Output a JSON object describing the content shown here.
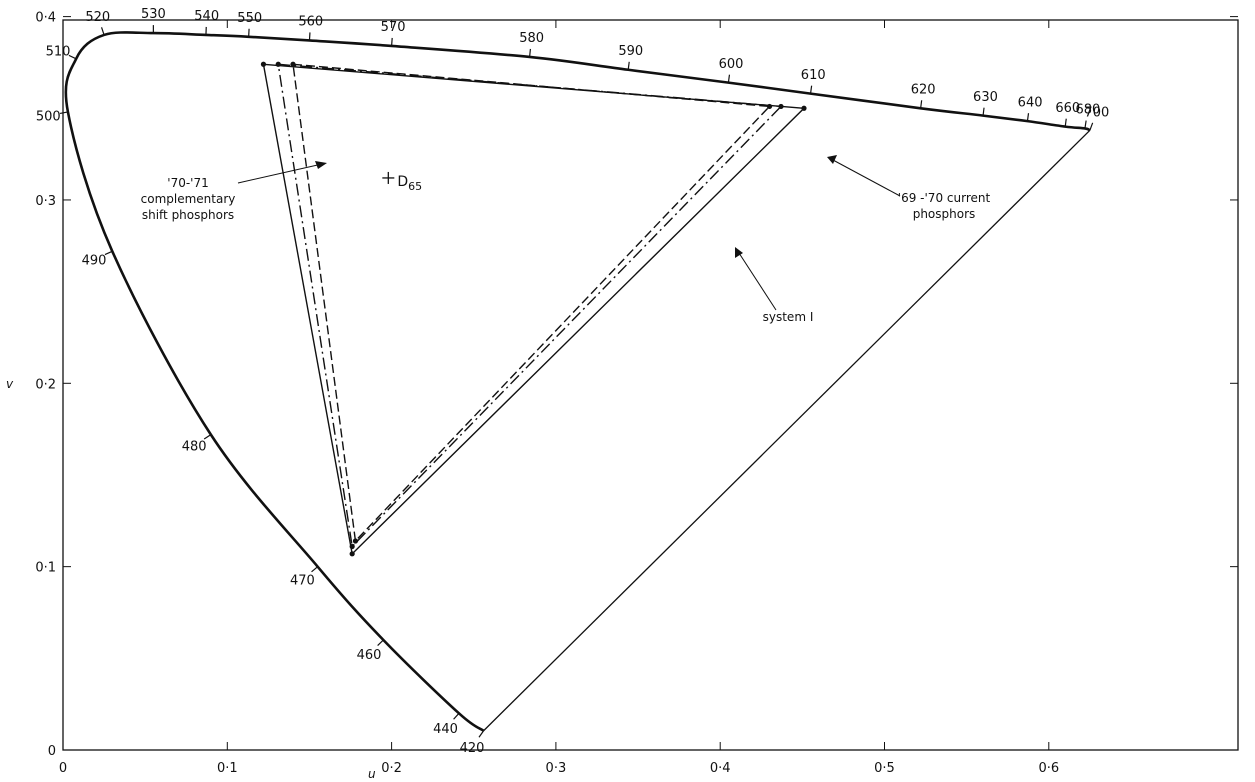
{
  "chart_data": {
    "type": "line",
    "title": "",
    "xlabel": "u",
    "ylabel": "v",
    "xlim": [
      0,
      0.65
    ],
    "ylim": [
      0,
      0.4
    ],
    "x_ticks": [
      {
        "value": 0,
        "label": "0"
      },
      {
        "value": 0.1,
        "label": "0·1"
      },
      {
        "value": 0.2,
        "label": "0·2"
      },
      {
        "value": 0.3,
        "label": "0·3"
      },
      {
        "value": 0.4,
        "label": "0·4"
      },
      {
        "value": 0.5,
        "label": "0·5"
      },
      {
        "value": 0.6,
        "label": "0·6"
      }
    ],
    "y_ticks": [
      {
        "value": 0,
        "label": "0"
      },
      {
        "value": 0.1,
        "label": "0·1"
      },
      {
        "value": 0.2,
        "label": "0·2"
      },
      {
        "value": 0.3,
        "label": "0·3"
      },
      {
        "value": 0.4,
        "label": "0·4"
      }
    ],
    "spectrum_locus": [
      {
        "wl": "420",
        "u": 0.256,
        "v": 0.0105
      },
      {
        "wl": "440",
        "u": 0.241,
        "v": 0.02
      },
      {
        "wl": "460",
        "u": 0.195,
        "v": 0.06
      },
      {
        "wl": "470",
        "u": 0.155,
        "v": 0.1
      },
      {
        "wl": "480",
        "u": 0.09,
        "v": 0.172
      },
      {
        "wl": "490",
        "u": 0.03,
        "v": 0.272
      },
      {
        "wl": "500",
        "u": 0.003,
        "v": 0.348
      },
      {
        "wl": "510",
        "u": 0.008,
        "v": 0.377
      },
      {
        "wl": "520",
        "u": 0.025,
        "v": 0.39
      },
      {
        "wl": "530",
        "u": 0.055,
        "v": 0.391
      },
      {
        "wl": "540",
        "u": 0.087,
        "v": 0.39
      },
      {
        "wl": "550",
        "u": 0.113,
        "v": 0.389
      },
      {
        "wl": "560",
        "u": 0.15,
        "v": 0.387
      },
      {
        "wl": "570",
        "u": 0.2,
        "v": 0.384
      },
      {
        "wl": "580",
        "u": 0.284,
        "v": 0.378
      },
      {
        "wl": "590",
        "u": 0.344,
        "v": 0.371
      },
      {
        "wl": "600",
        "u": 0.405,
        "v": 0.364
      },
      {
        "wl": "610",
        "u": 0.455,
        "v": 0.358
      },
      {
        "wl": "620",
        "u": 0.522,
        "v": 0.35
      },
      {
        "wl": "630",
        "u": 0.56,
        "v": 0.346
      },
      {
        "wl": "640",
        "u": 0.587,
        "v": 0.343
      },
      {
        "wl": "660",
        "u": 0.61,
        "v": 0.34
      },
      {
        "wl": "680",
        "u": 0.622,
        "v": 0.339
      },
      {
        "wl": "700",
        "u": 0.625,
        "v": 0.338
      }
    ],
    "series": [
      {
        "name": "system I",
        "style": "solid",
        "points": [
          [
            0.122,
            0.374
          ],
          [
            0.451,
            0.35
          ],
          [
            0.176,
            0.107
          ]
        ]
      },
      {
        "name": "'70-'71 complementary shift phosphors",
        "style": "dashdot",
        "points": [
          [
            0.131,
            0.374
          ],
          [
            0.437,
            0.351
          ],
          [
            0.176,
            0.111
          ]
        ]
      },
      {
        "name": "'69-'70 current phosphors",
        "style": "dashed",
        "points": [
          [
            0.14,
            0.374
          ],
          [
            0.43,
            0.351
          ],
          [
            0.178,
            0.114
          ]
        ]
      }
    ],
    "whitepoint": {
      "label": "D",
      "sub": "65",
      "u": 0.198,
      "v": 0.312
    },
    "annotations": [
      {
        "lines": [
          "'70-'71",
          "complementary",
          "shift phosphors"
        ]
      },
      {
        "lines": [
          "'69 -'70 current",
          "phosphors"
        ]
      },
      {
        "lines": [
          "system I"
        ]
      }
    ],
    "grid": false,
    "legend": "none"
  },
  "style": {
    "line_color": "#111111",
    "background": "#ffffff"
  }
}
